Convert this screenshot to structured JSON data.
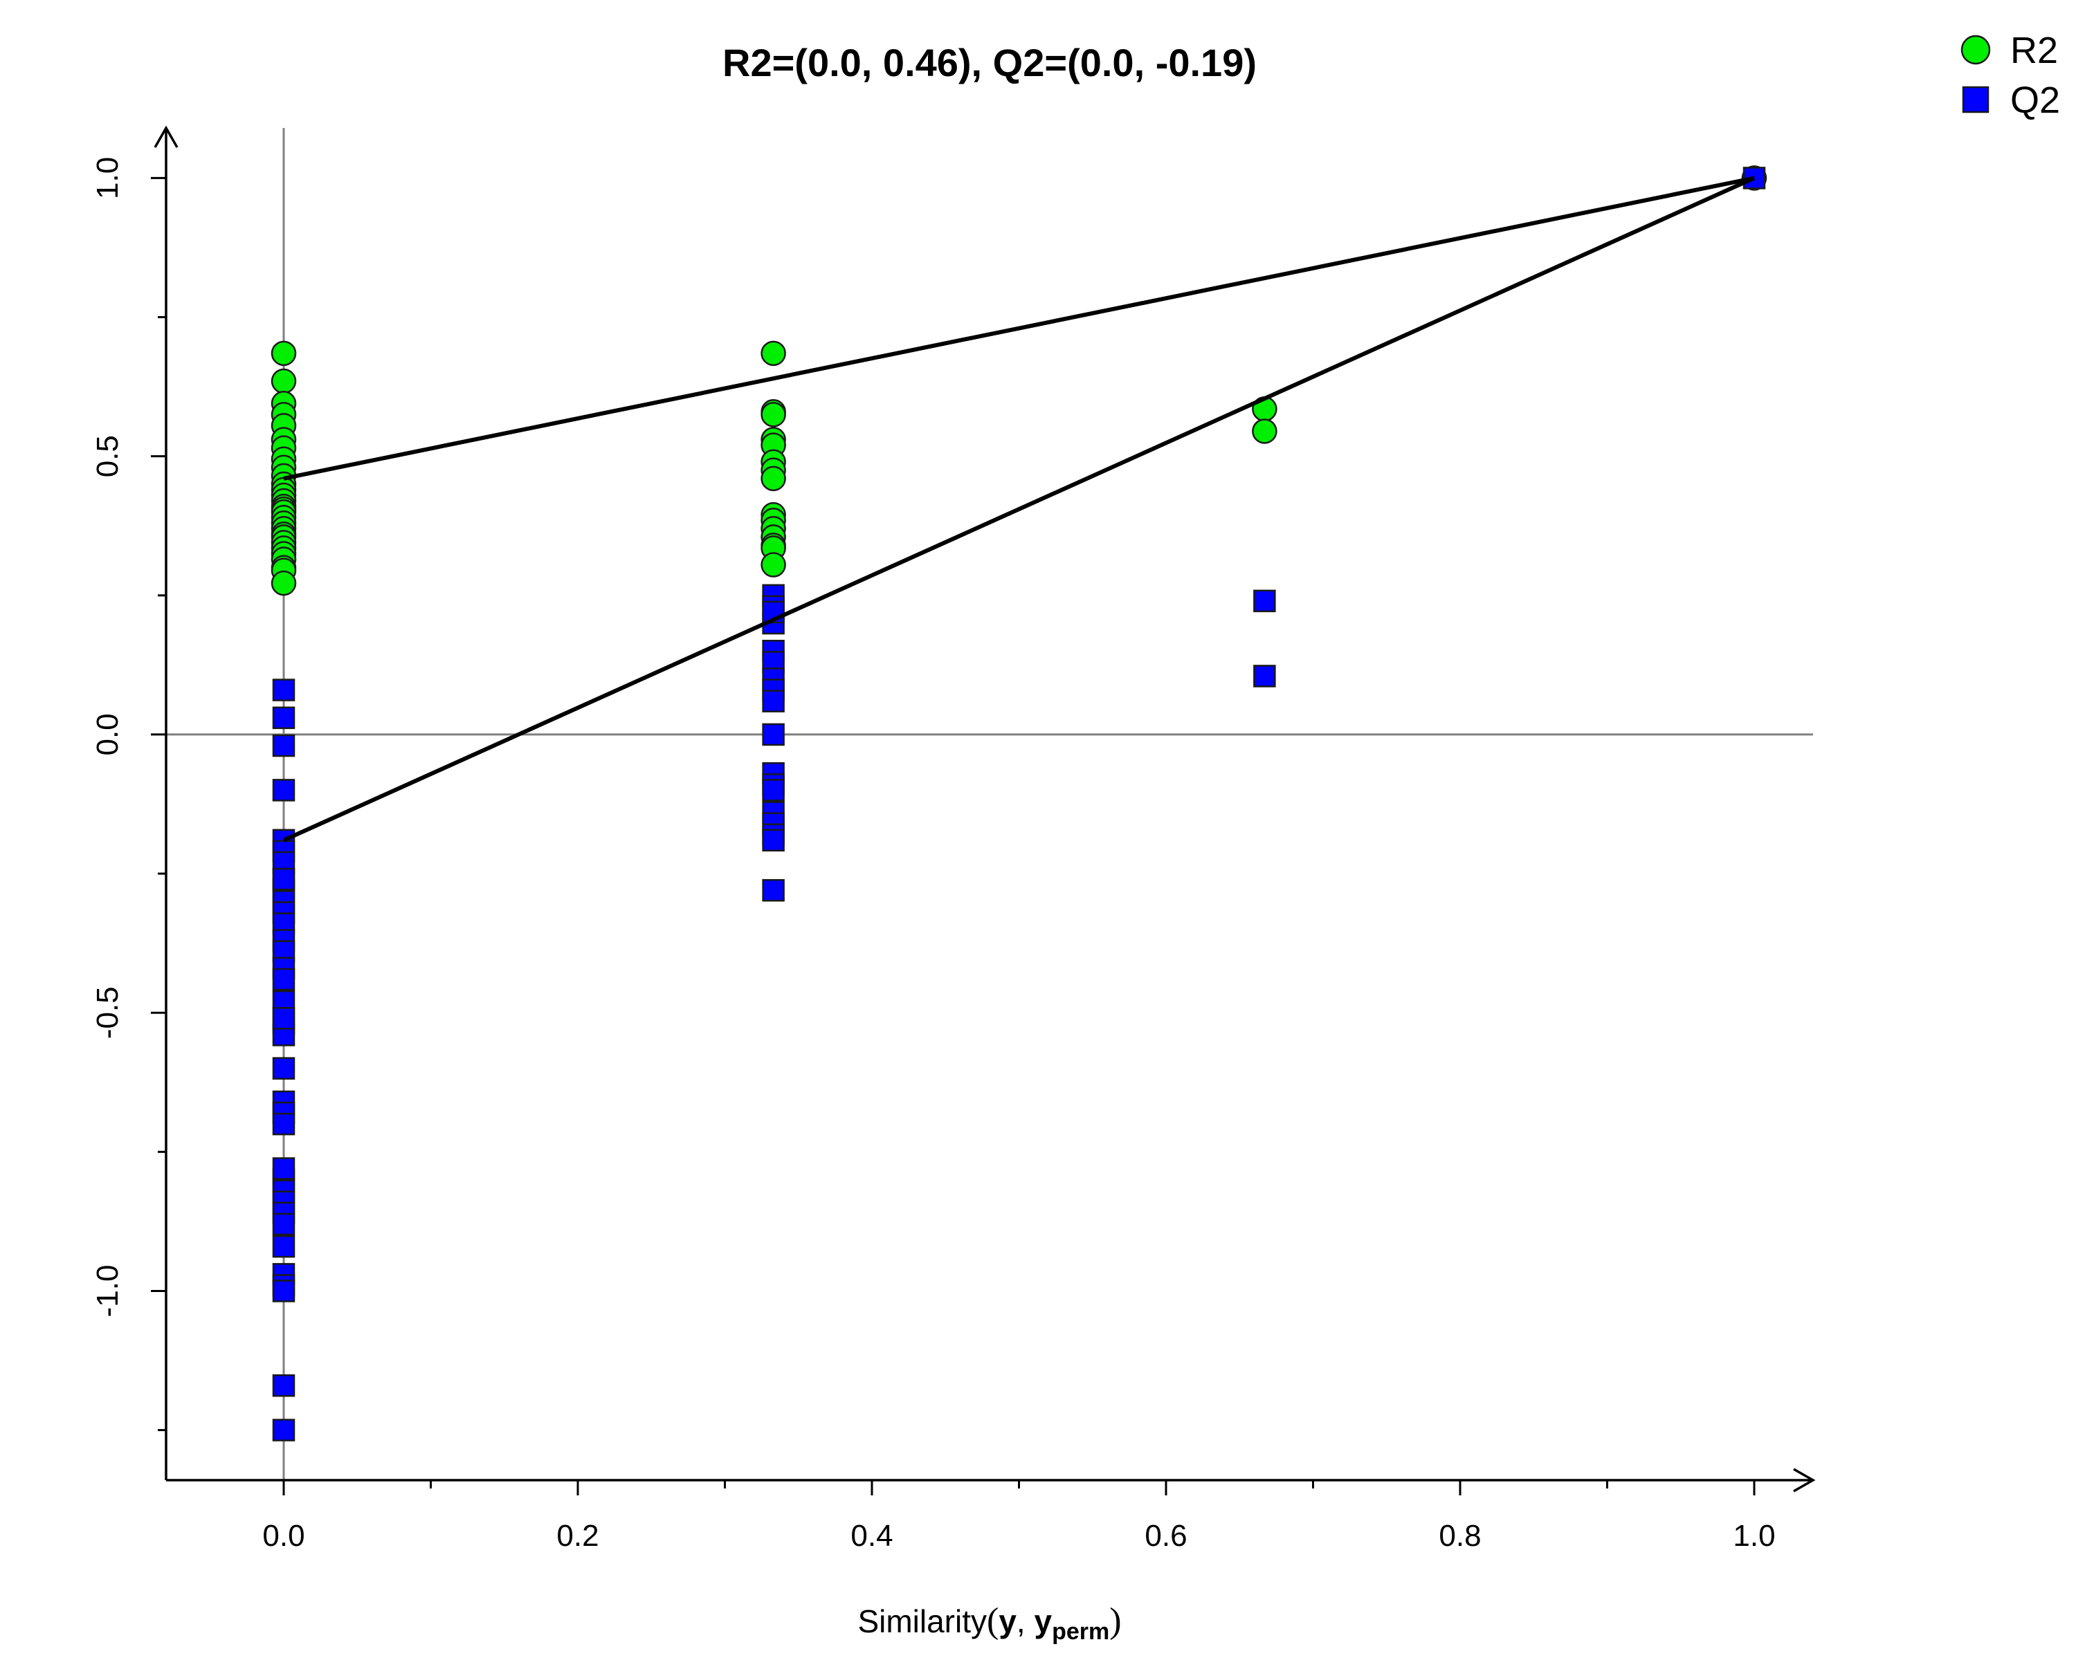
{
  "chart_data": {
    "type": "scatter",
    "title": "R2=(0.0, 0.46), Q2=(0.0, -0.19)",
    "xlabel": {
      "prefix": "Similarity",
      "open": "(",
      "y": "y",
      "comma": ", ",
      "yperm": "y",
      "sub": "perm",
      "close": ")"
    },
    "ylabel": "",
    "xlim": [
      -0.08,
      1.04
    ],
    "ylim": [
      -1.34,
      1.09
    ],
    "x_ticks": [
      0.0,
      0.2,
      0.4,
      0.6,
      0.8,
      1.0
    ],
    "x_tick_labels": [
      "0.0",
      "0.2",
      "0.4",
      "0.6",
      "0.8",
      "1.0"
    ],
    "x_minor_ticks": [
      0.1,
      0.3,
      0.5,
      0.7,
      0.9
    ],
    "y_ticks": [
      -1.0,
      -0.5,
      0.0,
      0.5,
      1.0
    ],
    "y_tick_labels": [
      "-1.0",
      "-0.5",
      "0.0",
      "0.5",
      "1.0"
    ],
    "y_minor_ticks": [
      -1.25,
      -0.75,
      -0.25,
      0.25,
      0.75
    ],
    "grid": false,
    "reference_lines": {
      "x": 0.0,
      "y": 0.0,
      "color": "#808080"
    },
    "legend": {
      "position": "top-right",
      "entries": [
        {
          "label": "R2",
          "marker": "circle",
          "color": "#00ee00"
        },
        {
          "label": "Q2",
          "marker": "square",
          "color": "#0000ff"
        }
      ]
    },
    "series": [
      {
        "name": "R2",
        "marker": "circle",
        "color": "#00ee00",
        "stroke": "#1a1a1a",
        "x": [
          0,
          0,
          0,
          0,
          0,
          0,
          0,
          0,
          0,
          0,
          0,
          0,
          0,
          0,
          0,
          0,
          0,
          0,
          0,
          0,
          0,
          0,
          0,
          0,
          0,
          0,
          0,
          0,
          0,
          0.333,
          0.333,
          0.333,
          0.333,
          0.333,
          0.333,
          0.333,
          0.333,
          0.333,
          0.333,
          0.333,
          0.333,
          0.333,
          0.333,
          0.333,
          0.667,
          0.667,
          1.0
        ],
        "y": [
          0.685,
          0.635,
          0.595,
          0.575,
          0.555,
          0.53,
          0.515,
          0.495,
          0.48,
          0.465,
          0.45,
          0.44,
          0.43,
          0.42,
          0.41,
          0.405,
          0.4,
          0.39,
          0.38,
          0.37,
          0.36,
          0.355,
          0.345,
          0.335,
          0.325,
          0.315,
          0.3,
          0.295,
          0.272,
          0.685,
          0.58,
          0.575,
          0.53,
          0.52,
          0.49,
          0.475,
          0.46,
          0.395,
          0.385,
          0.37,
          0.355,
          0.34,
          0.335,
          0.305,
          0.585,
          0.545,
          1.0
        ]
      },
      {
        "name": "Q2",
        "marker": "square",
        "color": "#0000ff",
        "stroke": "#1a1a1a",
        "x": [
          0,
          0,
          0,
          0,
          0,
          0,
          0,
          0,
          0,
          0,
          0,
          0,
          0,
          0,
          0,
          0,
          0,
          0,
          0,
          0,
          0,
          0,
          0,
          0,
          0,
          0,
          0,
          0,
          0,
          0,
          0,
          0,
          0,
          0,
          0,
          0,
          0,
          0.333,
          0.333,
          0.333,
          0.333,
          0.333,
          0.333,
          0.333,
          0.333,
          0.333,
          0.333,
          0.333,
          0.333,
          0.333,
          0.333,
          0.333,
          0.333,
          0.333,
          0.333,
          0.667,
          0.667,
          1.0
        ],
        "y": [
          0.08,
          0.03,
          -0.02,
          -0.1,
          -0.19,
          -0.21,
          -0.23,
          -0.26,
          -0.28,
          -0.3,
          -0.32,
          -0.34,
          -0.37,
          -0.39,
          -0.42,
          -0.44,
          -0.48,
          -0.52,
          -0.54,
          -0.6,
          -0.66,
          -0.68,
          -0.7,
          -0.8,
          -0.82,
          -0.84,
          -0.86,
          -0.92,
          -0.97,
          -0.99,
          -1.0,
          -1.17,
          -1.25,
          -0.26,
          -0.51,
          -0.78,
          -0.88,
          0.25,
          0.23,
          0.2,
          0.15,
          0.13,
          0.1,
          0.08,
          0.06,
          0.0,
          -0.07,
          -0.09,
          -0.1,
          -0.14,
          -0.16,
          -0.18,
          -0.19,
          -0.28,
          0.22,
          0.24,
          0.105,
          1.0
        ]
      }
    ],
    "fit_lines": [
      {
        "series": "R2",
        "x": [
          0.0,
          1.0
        ],
        "y": [
          0.46,
          1.0
        ]
      },
      {
        "series": "Q2",
        "x": [
          0.0,
          1.0
        ],
        "y": [
          -0.19,
          1.0
        ]
      }
    ]
  }
}
